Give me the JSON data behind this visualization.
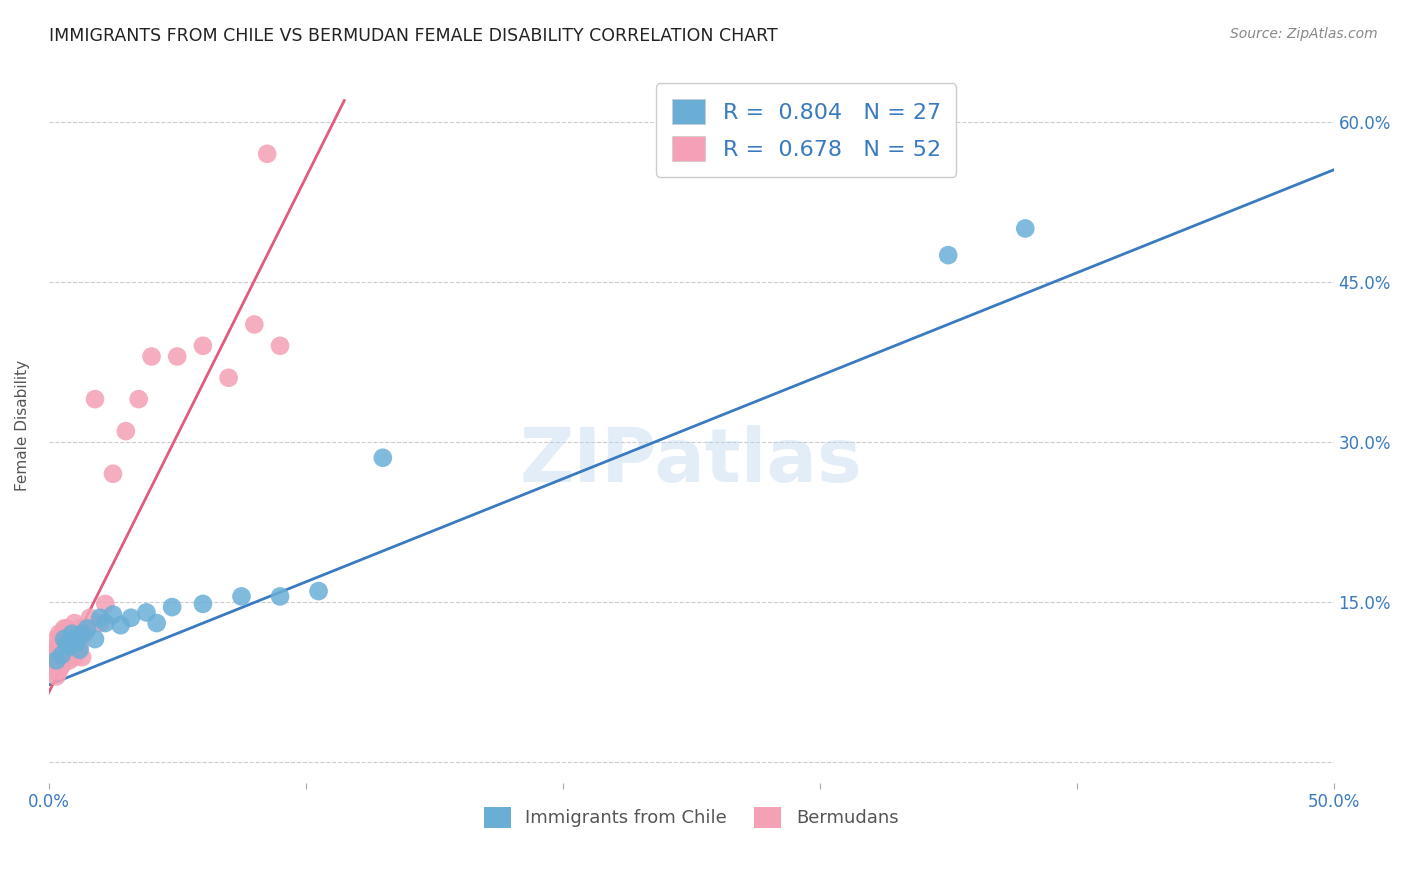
{
  "title": "IMMIGRANTS FROM CHILE VS BERMUDAN FEMALE DISABILITY CORRELATION CHART",
  "source": "Source: ZipAtlas.com",
  "ylabel": "Female Disability",
  "watermark": "ZIPatlas",
  "xlim": [
    0.0,
    0.5
  ],
  "ylim": [
    -0.02,
    0.65
  ],
  "blue_color": "#6aaed6",
  "pink_color": "#f4a0b5",
  "blue_line_color": "#3a7abf",
  "pink_line_color": "#e05c7a",
  "legend_R_blue": "0.804",
  "legend_N_blue": "27",
  "legend_R_pink": "0.678",
  "legend_N_pink": "52",
  "legend_label_blue": "Immigrants from Chile",
  "legend_label_pink": "Bermudans",
  "title_color": "#222222",
  "source_color": "#888888",
  "blue_scatter_x": [
    0.003,
    0.005,
    0.006,
    0.007,
    0.008,
    0.009,
    0.01,
    0.011,
    0.012,
    0.013,
    0.015,
    0.018,
    0.02,
    0.022,
    0.025,
    0.028,
    0.032,
    0.038,
    0.042,
    0.048,
    0.06,
    0.075,
    0.09,
    0.105,
    0.13,
    0.35,
    0.38
  ],
  "blue_scatter_y": [
    0.095,
    0.1,
    0.115,
    0.11,
    0.108,
    0.12,
    0.115,
    0.112,
    0.105,
    0.12,
    0.125,
    0.115,
    0.135,
    0.13,
    0.138,
    0.128,
    0.135,
    0.14,
    0.13,
    0.145,
    0.148,
    0.155,
    0.155,
    0.16,
    0.285,
    0.475,
    0.5
  ],
  "pink_scatter_x": [
    0.001,
    0.001,
    0.002,
    0.002,
    0.002,
    0.003,
    0.003,
    0.003,
    0.003,
    0.004,
    0.004,
    0.004,
    0.004,
    0.005,
    0.005,
    0.005,
    0.005,
    0.006,
    0.006,
    0.006,
    0.006,
    0.007,
    0.007,
    0.007,
    0.008,
    0.008,
    0.008,
    0.009,
    0.009,
    0.01,
    0.01,
    0.01,
    0.011,
    0.012,
    0.012,
    0.013,
    0.014,
    0.015,
    0.016,
    0.018,
    0.02,
    0.022,
    0.025,
    0.03,
    0.035,
    0.04,
    0.05,
    0.06,
    0.07,
    0.08,
    0.085,
    0.09
  ],
  "pink_scatter_y": [
    0.09,
    0.1,
    0.085,
    0.095,
    0.105,
    0.08,
    0.09,
    0.108,
    0.115,
    0.085,
    0.095,
    0.105,
    0.12,
    0.09,
    0.1,
    0.112,
    0.118,
    0.095,
    0.108,
    0.118,
    0.125,
    0.1,
    0.115,
    0.125,
    0.095,
    0.11,
    0.122,
    0.105,
    0.118,
    0.098,
    0.11,
    0.13,
    0.112,
    0.108,
    0.125,
    0.098,
    0.12,
    0.125,
    0.135,
    0.34,
    0.13,
    0.148,
    0.27,
    0.31,
    0.34,
    0.38,
    0.38,
    0.39,
    0.36,
    0.41,
    0.57,
    0.39
  ],
  "blue_line_x": [
    0.0,
    0.5
  ],
  "blue_line_y": [
    0.072,
    0.555
  ],
  "pink_line_x": [
    -0.001,
    0.115
  ],
  "pink_line_y": [
    0.06,
    0.62
  ]
}
